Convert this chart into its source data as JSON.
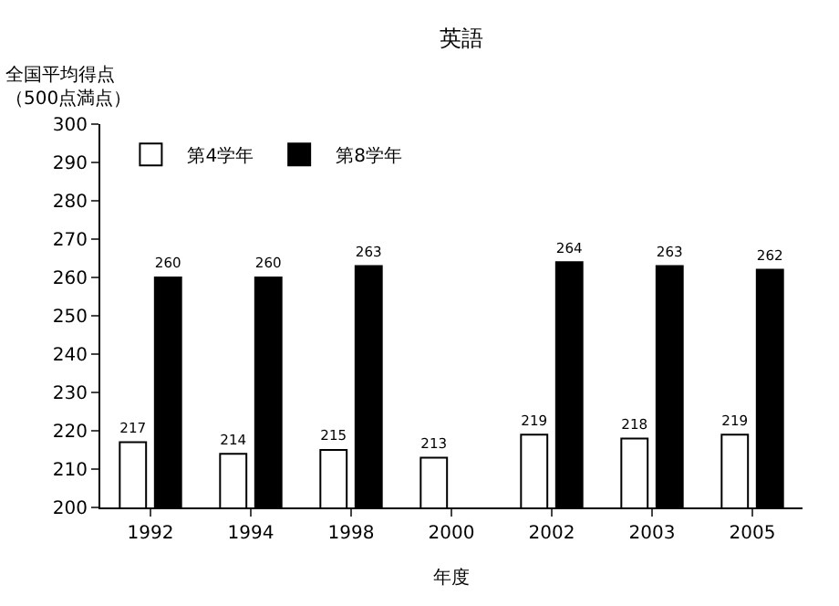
{
  "chart_data": {
    "type": "bar",
    "title": "英語",
    "ylabel": "全国平均得点（500点満点）",
    "xlabel": "年度",
    "categories": [
      "1992",
      "1994",
      "1998",
      "2000",
      "2002",
      "2003",
      "2005"
    ],
    "series": [
      {
        "name": "第4学年",
        "color": "#ffffff",
        "values": [
          217,
          214,
          215,
          213,
          219,
          218,
          219
        ]
      },
      {
        "name": "第8学年",
        "color": "#000000",
        "values": [
          260,
          260,
          263,
          null,
          264,
          263,
          262
        ]
      }
    ],
    "ylim": [
      200,
      300
    ],
    "yticks": [
      200,
      210,
      220,
      230,
      240,
      250,
      260,
      270,
      280,
      290,
      300
    ],
    "data_labels": true,
    "grid": false,
    "legend": "top left"
  }
}
